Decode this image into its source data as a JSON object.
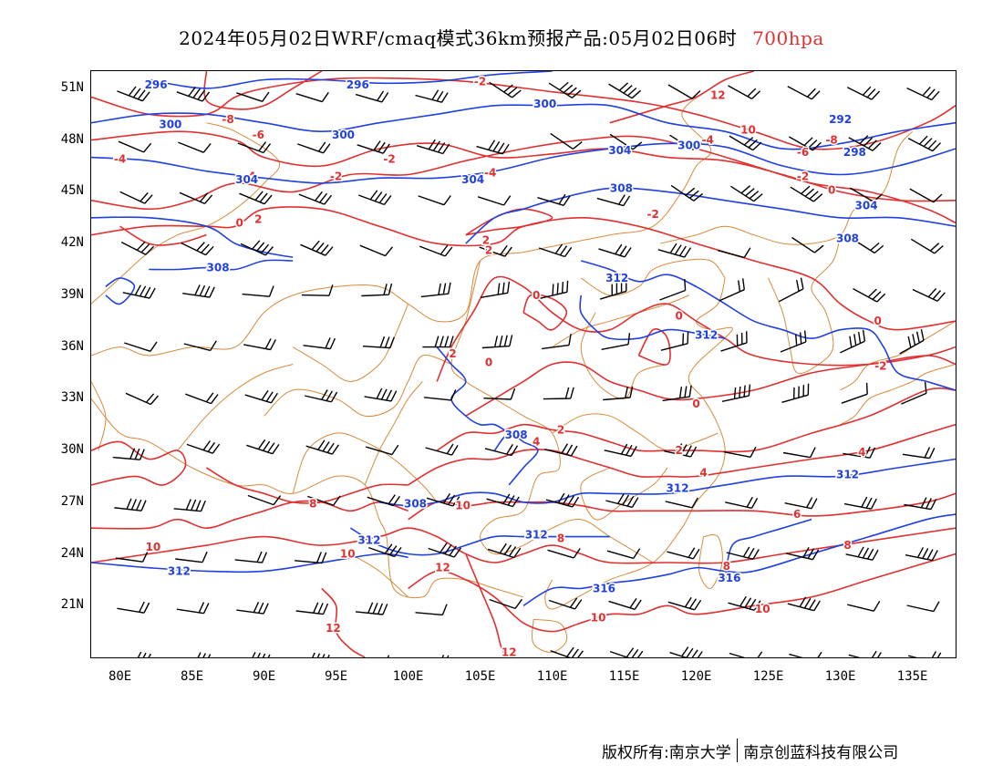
{
  "title": {
    "main": "2024年05月02日WRF/cmaq模式36km预报产品:05月02日06时",
    "level": "700hpa"
  },
  "axes": {
    "lat_labels": [
      "51N",
      "48N",
      "45N",
      "42N",
      "39N",
      "36N",
      "33N",
      "30N",
      "27N",
      "24N",
      "21N"
    ],
    "lon_labels": [
      "80E",
      "85E",
      "90E",
      "95E",
      "100E",
      "105E",
      "110E",
      "115E",
      "120E",
      "125E",
      "130E",
      "135E"
    ]
  },
  "footer": {
    "copyright": "版权所有:南京大学",
    "company": "南京创蓝科技有限公司"
  },
  "colors": {
    "height_contour": "#2040e0",
    "temperature_contour": "#e03030",
    "border": "#d98a3a",
    "wind_barb": "#000000"
  },
  "map_data": {
    "region": "China and East Asia",
    "lon_range": [
      78,
      138
    ],
    "lat_range": [
      18,
      52
    ],
    "fields": [
      {
        "name": "geopotential height (dagpm)",
        "color": "blue",
        "contour_labels": [
          "296",
          "300",
          "304",
          "308",
          "312",
          "316"
        ]
      },
      {
        "name": "temperature (°C)",
        "color": "red",
        "contour_labels": [
          "-6",
          "-4",
          "-2",
          "0",
          "2",
          "4",
          "6",
          "8",
          "10",
          "12"
        ]
      },
      {
        "name": "wind barbs",
        "color": "black"
      }
    ],
    "height_labels": [
      {
        "text": "296",
        "lon": 82.5,
        "lat": 51.2
      },
      {
        "text": "296",
        "lon": 96.5,
        "lat": 51.2
      },
      {
        "text": "300",
        "lon": 83.5,
        "lat": 48.9
      },
      {
        "text": "300",
        "lon": 95.5,
        "lat": 48.3
      },
      {
        "text": "300",
        "lon": 109.5,
        "lat": 50.1
      },
      {
        "text": "304",
        "lon": 88.8,
        "lat": 45.7
      },
      {
        "text": "304",
        "lon": 104.5,
        "lat": 45.7
      },
      {
        "text": "304",
        "lon": 114.7,
        "lat": 47.4
      },
      {
        "text": "300",
        "lon": 119.5,
        "lat": 47.7
      },
      {
        "text": "292",
        "lon": 130.0,
        "lat": 49.2
      },
      {
        "text": "298",
        "lon": 131.0,
        "lat": 47.3
      },
      {
        "text": "308",
        "lon": 114.8,
        "lat": 45.2
      },
      {
        "text": "304",
        "lon": 131.8,
        "lat": 44.2
      },
      {
        "text": "308",
        "lon": 130.5,
        "lat": 42.3
      },
      {
        "text": "308",
        "lon": 86.8,
        "lat": 40.6
      },
      {
        "text": "312",
        "lon": 114.5,
        "lat": 40.0
      },
      {
        "text": "312",
        "lon": 120.7,
        "lat": 36.7
      },
      {
        "text": "308",
        "lon": 107.5,
        "lat": 30.9
      },
      {
        "text": "308",
        "lon": 100.5,
        "lat": 26.9
      },
      {
        "text": "312",
        "lon": 97.3,
        "lat": 24.8
      },
      {
        "text": "312",
        "lon": 108.9,
        "lat": 25.1
      },
      {
        "text": "312",
        "lon": 118.7,
        "lat": 27.8
      },
      {
        "text": "312",
        "lon": 130.5,
        "lat": 28.6
      },
      {
        "text": "312",
        "lon": 84.1,
        "lat": 23.0
      },
      {
        "text": "316",
        "lon": 113.6,
        "lat": 22.0
      },
      {
        "text": "316",
        "lon": 122.3,
        "lat": 22.6
      }
    ],
    "temperature_labels": [
      {
        "text": "-2",
        "lon": 105.0,
        "lat": 51.4
      },
      {
        "text": "-8",
        "lon": 87.5,
        "lat": 49.2
      },
      {
        "text": "-6",
        "lon": 89.6,
        "lat": 48.3
      },
      {
        "text": "-4",
        "lon": 80.0,
        "lat": 46.9
      },
      {
        "text": "-4",
        "lon": 89.0,
        "lat": 45.9
      },
      {
        "text": "-2",
        "lon": 98.7,
        "lat": 46.9
      },
      {
        "text": "-2",
        "lon": 95.0,
        "lat": 45.9
      },
      {
        "text": "-4",
        "lon": 105.7,
        "lat": 46.1
      },
      {
        "text": "12",
        "lon": 121.5,
        "lat": 50.6
      },
      {
        "text": "10",
        "lon": 123.6,
        "lat": 48.6
      },
      {
        "text": "-4",
        "lon": 120.8,
        "lat": 48.0
      },
      {
        "text": "-6",
        "lon": 127.4,
        "lat": 47.3
      },
      {
        "text": "-8",
        "lon": 129.4,
        "lat": 48.0
      },
      {
        "text": "-2",
        "lon": 127.4,
        "lat": 45.9
      },
      {
        "text": "0",
        "lon": 129.4,
        "lat": 45.1
      },
      {
        "text": "0",
        "lon": 88.3,
        "lat": 43.2
      },
      {
        "text": "2",
        "lon": 89.6,
        "lat": 43.4
      },
      {
        "text": "-2",
        "lon": 117.0,
        "lat": 43.7
      },
      {
        "text": "2",
        "lon": 105.4,
        "lat": 42.2
      },
      {
        "text": "2",
        "lon": 105.6,
        "lat": 41.6
      },
      {
        "text": "0",
        "lon": 108.9,
        "lat": 39.0
      },
      {
        "text": "0",
        "lon": 118.8,
        "lat": 37.8
      },
      {
        "text": "0",
        "lon": 132.6,
        "lat": 37.5
      },
      {
        "text": "2",
        "lon": 103.1,
        "lat": 35.6
      },
      {
        "text": "0",
        "lon": 105.6,
        "lat": 35.1
      },
      {
        "text": "-2",
        "lon": 132.8,
        "lat": 34.9
      },
      {
        "text": "0",
        "lon": 120.0,
        "lat": 32.7
      },
      {
        "text": "2",
        "lon": 110.6,
        "lat": 31.2
      },
      {
        "text": "2",
        "lon": 118.8,
        "lat": 30.0
      },
      {
        "text": "4",
        "lon": 108.9,
        "lat": 30.5
      },
      {
        "text": "4",
        "lon": 131.5,
        "lat": 29.9
      },
      {
        "text": "4",
        "lon": 120.5,
        "lat": 28.7
      },
      {
        "text": "8",
        "lon": 93.4,
        "lat": 26.9
      },
      {
        "text": "10",
        "lon": 103.8,
        "lat": 26.8
      },
      {
        "text": "6",
        "lon": 127.0,
        "lat": 26.3
      },
      {
        "text": "8",
        "lon": 110.6,
        "lat": 24.9
      },
      {
        "text": "10",
        "lon": 82.3,
        "lat": 24.4
      },
      {
        "text": "10",
        "lon": 95.8,
        "lat": 24.0
      },
      {
        "text": "12",
        "lon": 102.4,
        "lat": 23.2
      },
      {
        "text": "8",
        "lon": 130.5,
        "lat": 24.5
      },
      {
        "text": "8",
        "lon": 122.1,
        "lat": 23.3
      },
      {
        "text": "10",
        "lon": 113.2,
        "lat": 20.3
      },
      {
        "text": "10",
        "lon": 124.6,
        "lat": 20.8
      },
      {
        "text": "12",
        "lon": 94.8,
        "lat": 19.7
      },
      {
        "text": "12",
        "lon": 107.0,
        "lat": 18.3
      }
    ]
  }
}
